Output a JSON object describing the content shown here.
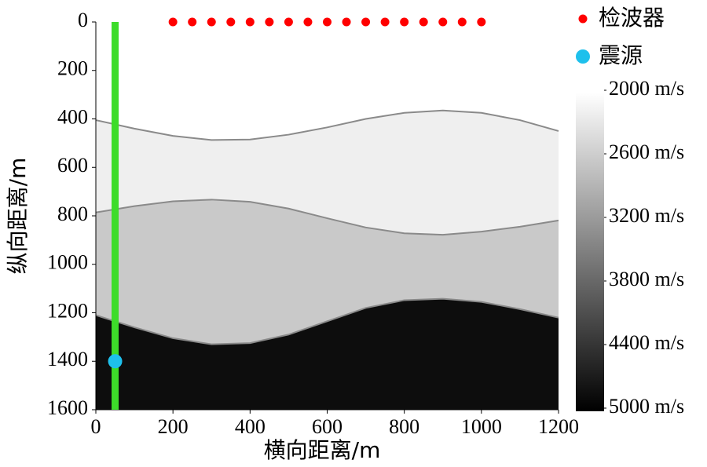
{
  "chart_data": {
    "type": "scatter",
    "x_label": "横向距离/m",
    "y_label": "纵向距离/m",
    "xlim": [
      0,
      1200
    ],
    "ylim": [
      0,
      1600
    ],
    "y_inverted": true,
    "xticks": [
      0,
      200,
      400,
      600,
      800,
      1000,
      1200
    ],
    "yticks": [
      0,
      200,
      400,
      600,
      800,
      1000,
      1200,
      1400,
      1600
    ],
    "background": "#ffffff",
    "interfaces": [
      {
        "color": "#efefef",
        "x": [
          0,
          100,
          200,
          300,
          400,
          500,
          600,
          700,
          800,
          900,
          1000,
          1100,
          1200
        ],
        "values": [
          405,
          440,
          470,
          487,
          485,
          465,
          435,
          400,
          375,
          365,
          375,
          405,
          450
        ]
      },
      {
        "color": "#c9c9c9",
        "x": [
          0,
          100,
          200,
          300,
          400,
          500,
          600,
          700,
          800,
          900,
          1000,
          1100,
          1200
        ],
        "values": [
          786,
          760,
          740,
          733,
          742,
          770,
          810,
          848,
          872,
          878,
          865,
          845,
          819
        ]
      },
      {
        "color": "#0d0d0d",
        "x": [
          0,
          100,
          200,
          300,
          400,
          500,
          600,
          700,
          800,
          900,
          1000,
          1100,
          1200
        ],
        "values": [
          1210,
          1260,
          1305,
          1330,
          1325,
          1290,
          1235,
          1180,
          1148,
          1142,
          1155,
          1185,
          1220
        ]
      }
    ],
    "well": {
      "color": "#3ddc2a",
      "x": [
        50,
        50
      ],
      "values": [
        0,
        1600
      ]
    },
    "series": [
      {
        "name": "检波器",
        "color": "#ff0000",
        "x": [
          200,
          250,
          300,
          350,
          400,
          450,
          500,
          550,
          600,
          650,
          700,
          750,
          800,
          850,
          900,
          950,
          1000
        ],
        "values": [
          0,
          0,
          0,
          0,
          0,
          0,
          0,
          0,
          0,
          0,
          0,
          0,
          0,
          0,
          0,
          0,
          0
        ]
      },
      {
        "name": "震源",
        "color": "#1ec0ec",
        "x": [
          50
        ],
        "values": [
          1400
        ]
      }
    ],
    "colorbar": {
      "clim": [
        2000,
        5000
      ],
      "colors": [
        "#ffffff",
        "#000000"
      ],
      "ticks": [
        {
          "value": 2000,
          "label": "2000 m/s"
        },
        {
          "value": 2600,
          "label": "2600 m/s"
        },
        {
          "value": 3200,
          "label": "3200 m/s"
        },
        {
          "value": 3800,
          "label": "3800 m/s"
        },
        {
          "value": 4400,
          "label": "4400 m/s"
        },
        {
          "value": 5000,
          "label": "5000 m/s"
        }
      ]
    }
  }
}
